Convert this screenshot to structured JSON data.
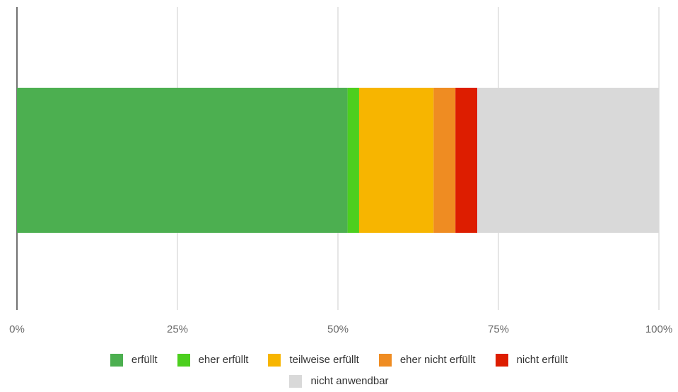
{
  "chart_data": {
    "type": "bar",
    "orientation": "horizontal",
    "stacked": true,
    "normalized": true,
    "categories": [
      ""
    ],
    "x_ticks": [
      "0%",
      "25%",
      "50%",
      "75%",
      "100%"
    ],
    "xlim": [
      0,
      100
    ],
    "grid": true,
    "legend_position": "bottom",
    "series": [
      {
        "name": "erfüllt",
        "values": [
          51.5
        ],
        "color": "#4caf50"
      },
      {
        "name": "eher erfüllt",
        "values": [
          1.8
        ],
        "color": "#4ccf1e"
      },
      {
        "name": "teilweise erfüllt",
        "values": [
          11.6
        ],
        "color": "#f7b500"
      },
      {
        "name": "eher nicht erfüllt",
        "values": [
          3.4
        ],
        "color": "#ef8c22"
      },
      {
        "name": "nicht erfüllt",
        "values": [
          3.4
        ],
        "color": "#dd1d00"
      },
      {
        "name": "nicht anwendbar",
        "values": [
          28.3
        ],
        "color": "#d9d9d9"
      }
    ]
  }
}
